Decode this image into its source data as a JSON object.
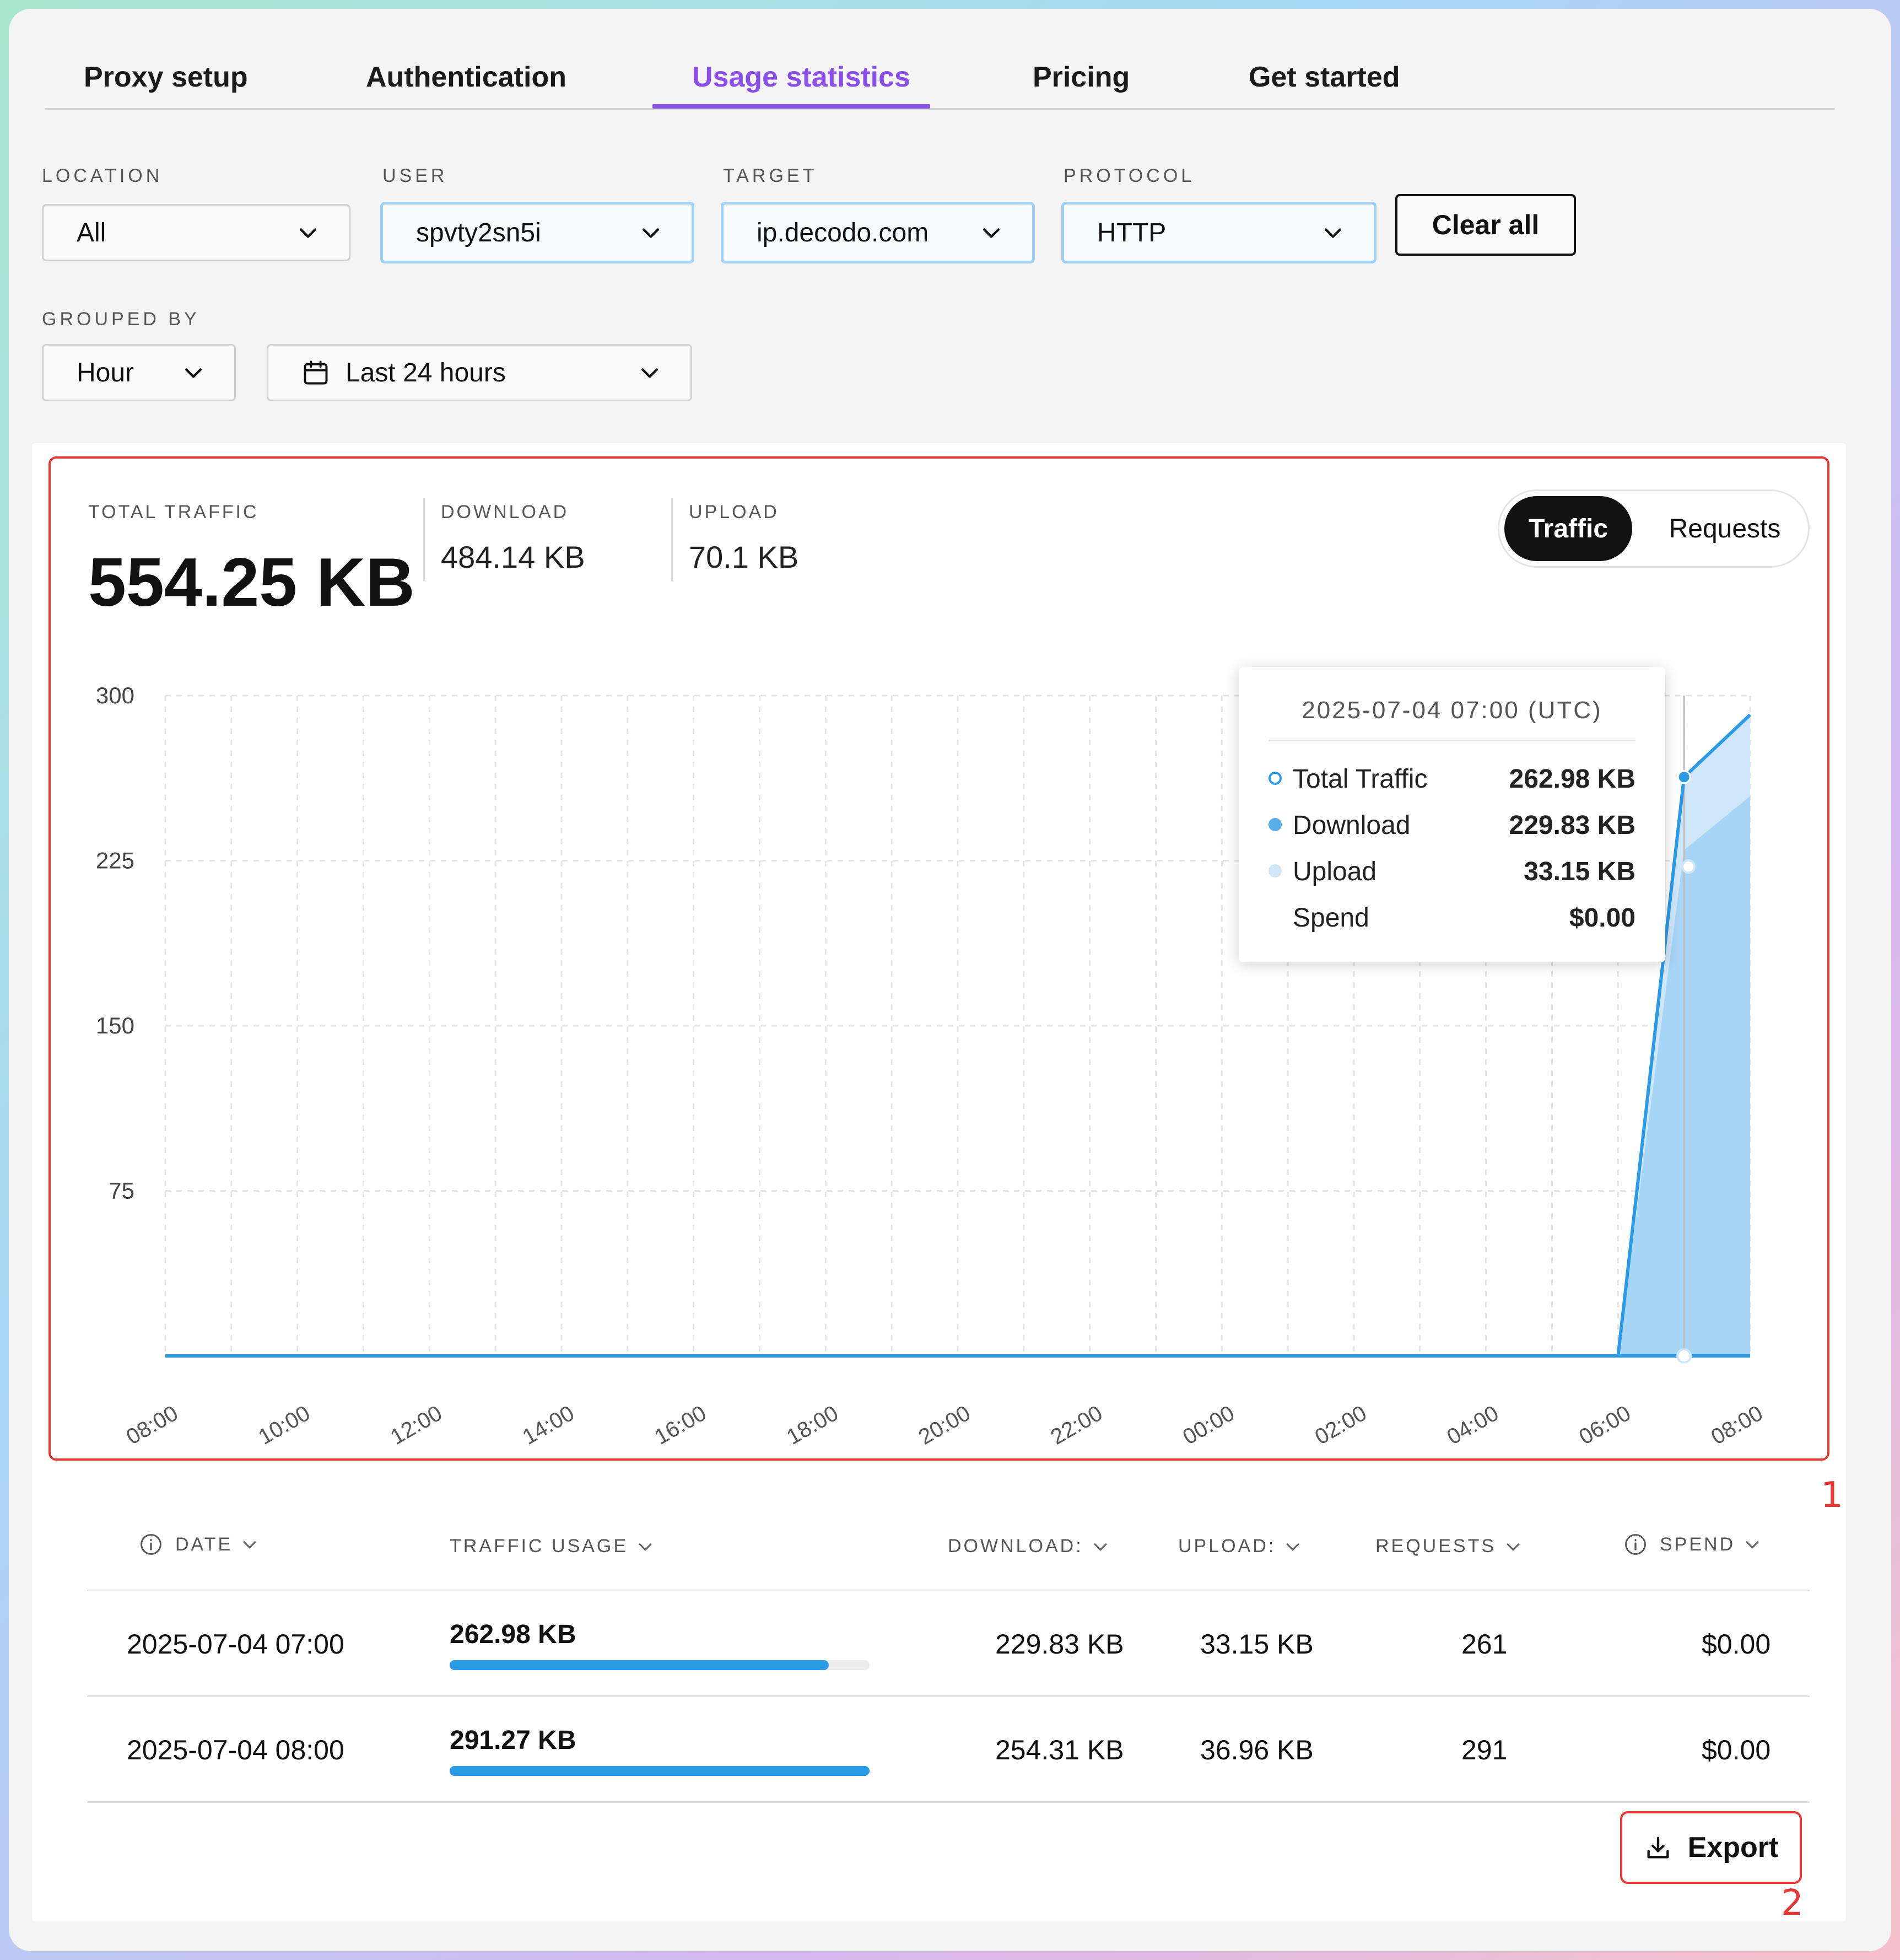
{
  "tabs": [
    {
      "label": "Proxy setup"
    },
    {
      "label": "Authentication"
    },
    {
      "label": "Usage statistics",
      "active": true
    },
    {
      "label": "Pricing"
    },
    {
      "label": "Get started"
    }
  ],
  "filters": {
    "location": {
      "label": "LOCATION",
      "value": "All"
    },
    "user": {
      "label": "USER",
      "value": "spvty2sn5i"
    },
    "target": {
      "label": "TARGET",
      "value": "ip.decodo.com"
    },
    "protocol": {
      "label": "PROTOCOL",
      "value": "HTTP"
    },
    "clear_label": "Clear all",
    "grouped_by": {
      "label": "GROUPED BY",
      "value": "Hour"
    },
    "range": {
      "value": "Last 24 hours"
    }
  },
  "stats": {
    "total_label": "TOTAL TRAFFIC",
    "total_value": "554.25 KB",
    "download_label": "DOWNLOAD",
    "download_value": "484.14 KB",
    "upload_label": "UPLOAD",
    "upload_value": "70.1 KB"
  },
  "toggle": {
    "traffic": "Traffic",
    "requests": "Requests",
    "selected": "Traffic"
  },
  "chart_data": {
    "type": "area",
    "y_ticks": [
      "300",
      "225",
      "150",
      "75"
    ],
    "ylim": [
      0,
      300
    ],
    "x_ticks": [
      "08:00",
      "10:00",
      "12:00",
      "14:00",
      "16:00",
      "18:00",
      "20:00",
      "22:00",
      "00:00",
      "02:00",
      "04:00",
      "06:00",
      "08:00"
    ],
    "grid": true,
    "series": [
      {
        "name": "Total Traffic",
        "color": "#2b9be6",
        "values": [
          0,
          0,
          0,
          0,
          0,
          0,
          0,
          0,
          0,
          0,
          0,
          0,
          0,
          0,
          0,
          0,
          0,
          0,
          0,
          0,
          0,
          0,
          0,
          262.98,
          291.27
        ]
      },
      {
        "name": "Download",
        "color": "#a6d5f5",
        "values": [
          0,
          0,
          0,
          0,
          0,
          0,
          0,
          0,
          0,
          0,
          0,
          0,
          0,
          0,
          0,
          0,
          0,
          0,
          0,
          0,
          0,
          0,
          0,
          229.83,
          254.31
        ]
      },
      {
        "name": "Upload",
        "color": "#cfe6f8",
        "values": [
          0,
          0,
          0,
          0,
          0,
          0,
          0,
          0,
          0,
          0,
          0,
          0,
          0,
          0,
          0,
          0,
          0,
          0,
          0,
          0,
          0,
          0,
          0,
          33.15,
          36.96
        ]
      }
    ]
  },
  "tooltip": {
    "title": "2025-07-04 07:00 (UTC)",
    "rows": [
      {
        "label": "Total Traffic",
        "value": "262.98 KB"
      },
      {
        "label": "Download",
        "value": "229.83 KB"
      },
      {
        "label": "Upload",
        "value": "33.15 KB"
      },
      {
        "label": "Spend",
        "value": "$0.00"
      }
    ]
  },
  "annotations": {
    "chart_marker": "1",
    "export_marker": "2"
  },
  "table": {
    "headers": {
      "date": "DATE",
      "traffic": "TRAFFIC USAGE",
      "download": "DOWNLOAD:",
      "upload": "UPLOAD:",
      "requests": "REQUESTS",
      "spend": "SPEND"
    },
    "rows": [
      {
        "date": "2025-07-04 07:00",
        "traffic": "262.98 KB",
        "traffic_fraction": 0.903,
        "download": "229.83 KB",
        "upload": "33.15 KB",
        "requests": "261",
        "spend": "$0.00"
      },
      {
        "date": "2025-07-04 08:00",
        "traffic": "291.27 KB",
        "traffic_fraction": 1.0,
        "download": "254.31 KB",
        "upload": "36.96 KB",
        "requests": "291",
        "spend": "$0.00"
      }
    ]
  },
  "export_label": "Export"
}
